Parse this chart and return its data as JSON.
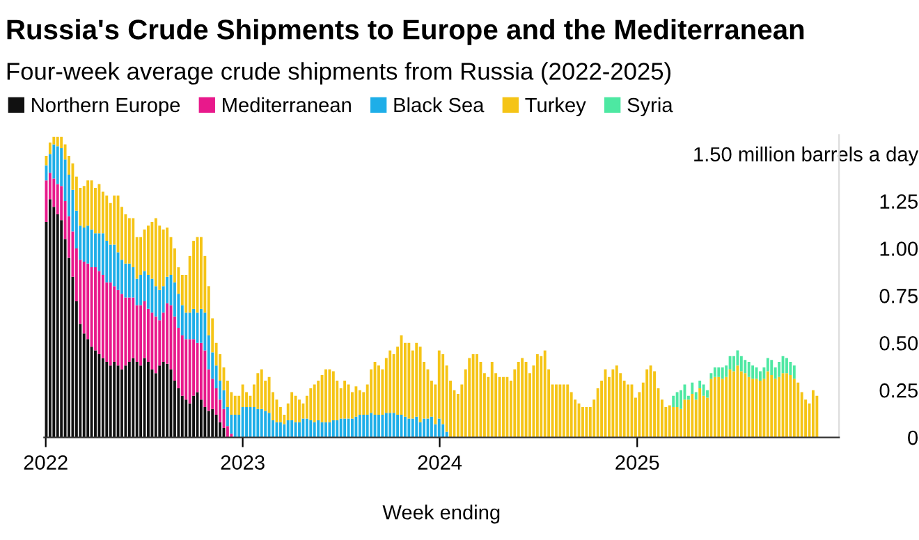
{
  "chart_data": {
    "type": "bar",
    "stacked": true,
    "title": "Russia's Crude Shipments to Europe and the Mediterranean",
    "subtitle": "Four-week average crude shipments from Russia (2022-2025)",
    "xlabel": "Week ending",
    "x": [
      "2022-01-02",
      "2022-01-09",
      "2022-01-16",
      "2022-01-23",
      "2022-01-30",
      "2022-02-06",
      "2022-02-13",
      "2022-02-20",
      "2022-02-27",
      "2022-03-06",
      "2022-03-13",
      "2022-03-20",
      "2022-03-27",
      "2022-04-03",
      "2022-04-10",
      "2022-04-17",
      "2022-04-24",
      "2022-05-01",
      "2022-05-08",
      "2022-05-15",
      "2022-05-22",
      "2022-05-29",
      "2022-06-05",
      "2022-06-12",
      "2022-06-19",
      "2022-06-26",
      "2022-07-03",
      "2022-07-10",
      "2022-07-17",
      "2022-07-24",
      "2022-07-31",
      "2022-08-07",
      "2022-08-14",
      "2022-08-21",
      "2022-08-28",
      "2022-09-04",
      "2022-09-11",
      "2022-09-18",
      "2022-09-25",
      "2022-10-02",
      "2022-10-09",
      "2022-10-16",
      "2022-10-23",
      "2022-10-30",
      "2022-11-06",
      "2022-11-13",
      "2022-11-20",
      "2022-11-27",
      "2022-12-04",
      "2022-12-11",
      "2022-12-18",
      "2022-12-25",
      "2023-01-01",
      "2023-01-08",
      "2023-01-15",
      "2023-01-22",
      "2023-01-29",
      "2023-02-05",
      "2023-02-12",
      "2023-02-19",
      "2023-02-26",
      "2023-03-05",
      "2023-03-12",
      "2023-03-19",
      "2023-03-26",
      "2023-04-02",
      "2023-04-09",
      "2023-04-16",
      "2023-04-23",
      "2023-04-30",
      "2023-05-07",
      "2023-05-14",
      "2023-05-21",
      "2023-05-28",
      "2023-06-04",
      "2023-06-11",
      "2023-06-18",
      "2023-06-25",
      "2023-07-02",
      "2023-07-09",
      "2023-07-16",
      "2023-07-23",
      "2023-07-30",
      "2023-08-06",
      "2023-08-13",
      "2023-08-20",
      "2023-08-27",
      "2023-09-03",
      "2023-09-10",
      "2023-09-17",
      "2023-09-24",
      "2023-10-01",
      "2023-10-08",
      "2023-10-15",
      "2023-10-22",
      "2023-10-29",
      "2023-11-05",
      "2023-11-12",
      "2023-11-19",
      "2023-11-26",
      "2023-12-03",
      "2023-12-10",
      "2023-12-17",
      "2023-12-24",
      "2023-12-31",
      "2024-01-07",
      "2024-01-14",
      "2024-01-21",
      "2024-01-28",
      "2024-02-04",
      "2024-02-11",
      "2024-02-18",
      "2024-02-25",
      "2024-03-03",
      "2024-03-10",
      "2024-03-17",
      "2024-03-24",
      "2024-03-31",
      "2024-04-07",
      "2024-04-14",
      "2024-04-21",
      "2024-04-28",
      "2024-05-05",
      "2024-05-12",
      "2024-05-19",
      "2024-05-26",
      "2024-06-02",
      "2024-06-09",
      "2024-06-16",
      "2024-06-23",
      "2024-06-30",
      "2024-07-07",
      "2024-07-14",
      "2024-07-21",
      "2024-07-28",
      "2024-08-04",
      "2024-08-11",
      "2024-08-18",
      "2024-08-25",
      "2024-09-01",
      "2024-09-08",
      "2024-09-15",
      "2024-09-22",
      "2024-09-29",
      "2024-10-06",
      "2024-10-13",
      "2024-10-20",
      "2024-10-27",
      "2024-11-03",
      "2024-11-10",
      "2024-11-17",
      "2024-11-24",
      "2024-12-01",
      "2024-12-08",
      "2024-12-15",
      "2024-12-22",
      "2024-12-29",
      "2025-01-05",
      "2025-01-12",
      "2025-01-19",
      "2025-01-26",
      "2025-02-02",
      "2025-02-09",
      "2025-02-16",
      "2025-02-23",
      "2025-03-02",
      "2025-03-09",
      "2025-03-16",
      "2025-03-23",
      "2025-03-30",
      "2025-04-06",
      "2025-04-13",
      "2025-04-20",
      "2025-04-27",
      "2025-05-04",
      "2025-05-11",
      "2025-05-18",
      "2025-05-25",
      "2025-06-01",
      "2025-06-08",
      "2025-06-15",
      "2025-06-22",
      "2025-06-29",
      "2025-07-06",
      "2025-07-13",
      "2025-07-20",
      "2025-07-27",
      "2025-08-03",
      "2025-08-10",
      "2025-08-17",
      "2025-08-24",
      "2025-08-31",
      "2025-09-07",
      "2025-09-14",
      "2025-09-21",
      "2025-09-28",
      "2025-10-05",
      "2025-10-12",
      "2025-10-19",
      "2025-10-26",
      "2025-11-02",
      "2025-11-09",
      "2025-11-16",
      "2025-11-23",
      "2025-11-30"
    ],
    "series": [
      {
        "name": "Northern Europe",
        "color": "#111111",
        "values": [
          1.14,
          1.26,
          1.22,
          1.18,
          1.15,
          1.05,
          0.95,
          0.85,
          0.72,
          0.6,
          0.55,
          0.52,
          0.48,
          0.46,
          0.44,
          0.42,
          0.4,
          0.38,
          0.4,
          0.38,
          0.36,
          0.38,
          0.4,
          0.42,
          0.4,
          0.38,
          0.42,
          0.4,
          0.36,
          0.34,
          0.38,
          0.4,
          0.39,
          0.36,
          0.3,
          0.26,
          0.22,
          0.2,
          0.18,
          0.22,
          0.24,
          0.2,
          0.16,
          0.14,
          0.15,
          0.12,
          0.08,
          0.05,
          0,
          0,
          0,
          0,
          0,
          0,
          0,
          0,
          0,
          0,
          0,
          0,
          0,
          0,
          0,
          0,
          0,
          0,
          0,
          0,
          0,
          0,
          0,
          0,
          0,
          0,
          0,
          0,
          0,
          0,
          0,
          0,
          0,
          0,
          0,
          0,
          0,
          0,
          0,
          0,
          0,
          0,
          0,
          0,
          0,
          0,
          0,
          0,
          0,
          0,
          0,
          0,
          0,
          0,
          0,
          0,
          0,
          0,
          0,
          0,
          0,
          0,
          0,
          0,
          0,
          0,
          0,
          0,
          0,
          0,
          0,
          0,
          0,
          0,
          0,
          0,
          0,
          0,
          0,
          0,
          0,
          0,
          0,
          0,
          0,
          0,
          0,
          0,
          0,
          0,
          0,
          0,
          0,
          0,
          0,
          0,
          0,
          0,
          0,
          0,
          0,
          0,
          0,
          0,
          0,
          0,
          0,
          0,
          0,
          0,
          0,
          0,
          0,
          0,
          0,
          0,
          0,
          0,
          0,
          0,
          0,
          0,
          0,
          0,
          0,
          0,
          0,
          0,
          0,
          0,
          0,
          0,
          0,
          0,
          0,
          0,
          0,
          0,
          0,
          0,
          0,
          0,
          0,
          0,
          0,
          0,
          0,
          0,
          0,
          0,
          0,
          0,
          0,
          0,
          0,
          0,
          0
        ]
      },
      {
        "name": "Mediterranean",
        "color": "#e8198b",
        "values": [
          0.22,
          0.14,
          0.15,
          0.16,
          0.18,
          0.2,
          0.22,
          0.24,
          0.28,
          0.34,
          0.38,
          0.4,
          0.42,
          0.44,
          0.44,
          0.44,
          0.42,
          0.44,
          0.4,
          0.4,
          0.4,
          0.36,
          0.34,
          0.32,
          0.3,
          0.32,
          0.3,
          0.28,
          0.3,
          0.3,
          0.24,
          0.26,
          0.32,
          0.34,
          0.34,
          0.32,
          0.32,
          0.32,
          0.34,
          0.3,
          0.26,
          0.3,
          0.3,
          0.22,
          0.16,
          0.14,
          0.12,
          0.1,
          0.06,
          0.02,
          0,
          0,
          0,
          0,
          0,
          0,
          0,
          0,
          0,
          0,
          0,
          0,
          0,
          0,
          0,
          0,
          0,
          0,
          0,
          0,
          0,
          0,
          0,
          0,
          0,
          0,
          0,
          0,
          0,
          0,
          0,
          0,
          0,
          0,
          0,
          0,
          0,
          0,
          0,
          0,
          0,
          0,
          0,
          0,
          0,
          0,
          0,
          0,
          0,
          0,
          0,
          0,
          0,
          0,
          0,
          0,
          0,
          0,
          0,
          0,
          0,
          0,
          0,
          0,
          0,
          0,
          0,
          0,
          0,
          0,
          0,
          0,
          0,
          0,
          0,
          0,
          0,
          0,
          0,
          0,
          0,
          0,
          0,
          0,
          0,
          0,
          0,
          0,
          0,
          0,
          0,
          0,
          0,
          0,
          0,
          0,
          0,
          0,
          0,
          0,
          0,
          0,
          0,
          0,
          0,
          0,
          0,
          0,
          0,
          0,
          0,
          0,
          0,
          0,
          0,
          0,
          0,
          0,
          0,
          0,
          0,
          0,
          0,
          0,
          0,
          0,
          0,
          0,
          0,
          0,
          0,
          0,
          0,
          0,
          0,
          0,
          0,
          0,
          0,
          0,
          0,
          0,
          0,
          0,
          0,
          0,
          0,
          0,
          0,
          0,
          0,
          0,
          0,
          0,
          0
        ]
      },
      {
        "name": "Black Sea",
        "color": "#1eaee8",
        "values": [
          0.08,
          0.1,
          0.18,
          0.2,
          0.2,
          0.22,
          0.22,
          0.22,
          0.2,
          0.18,
          0.18,
          0.2,
          0.2,
          0.18,
          0.2,
          0.22,
          0.22,
          0.2,
          0.22,
          0.2,
          0.18,
          0.18,
          0.18,
          0.16,
          0.14,
          0.16,
          0.16,
          0.18,
          0.18,
          0.16,
          0.16,
          0.14,
          0.14,
          0.16,
          0.18,
          0.18,
          0.16,
          0.14,
          0.14,
          0.16,
          0.16,
          0.18,
          0.2,
          0.18,
          0.14,
          0.12,
          0.1,
          0.1,
          0.1,
          0.1,
          0.12,
          0.12,
          0.16,
          0.16,
          0.16,
          0.16,
          0.15,
          0.15,
          0.14,
          0.13,
          0.09,
          0.08,
          0.08,
          0.07,
          0.09,
          0.09,
          0.08,
          0.08,
          0.1,
          0.1,
          0.09,
          0.08,
          0.09,
          0.08,
          0.08,
          0.08,
          0.09,
          0.09,
          0.1,
          0.1,
          0.1,
          0.1,
          0.11,
          0.12,
          0.12,
          0.12,
          0.13,
          0.12,
          0.12,
          0.12,
          0.13,
          0.13,
          0.13,
          0.12,
          0.12,
          0.11,
          0.1,
          0.1,
          0.11,
          0.08,
          0.1,
          0.1,
          0.11,
          0.07,
          0.1,
          0.07,
          0.03,
          0,
          0,
          0,
          0,
          0,
          0,
          0,
          0,
          0,
          0,
          0,
          0,
          0,
          0,
          0,
          0,
          0,
          0,
          0,
          0,
          0,
          0,
          0,
          0,
          0,
          0,
          0,
          0,
          0,
          0,
          0,
          0,
          0,
          0,
          0,
          0,
          0,
          0,
          0,
          0,
          0,
          0,
          0,
          0,
          0,
          0,
          0,
          0,
          0,
          0,
          0,
          0,
          0,
          0,
          0,
          0,
          0,
          0,
          0,
          0,
          0,
          0,
          0,
          0,
          0,
          0,
          0,
          0,
          0,
          0,
          0,
          0,
          0,
          0,
          0,
          0,
          0,
          0,
          0,
          0,
          0,
          0,
          0,
          0,
          0,
          0,
          0,
          0,
          0,
          0,
          0,
          0,
          0,
          0,
          0,
          0,
          0,
          0
        ]
      },
      {
        "name": "Turkey",
        "color": "#f5c416",
        "values": [
          0.05,
          0.06,
          0.04,
          0.05,
          0.06,
          0.08,
          0.1,
          0.14,
          0.18,
          0.2,
          0.22,
          0.24,
          0.26,
          0.24,
          0.26,
          0.22,
          0.24,
          0.22,
          0.26,
          0.3,
          0.28,
          0.26,
          0.24,
          0.26,
          0.22,
          0.2,
          0.22,
          0.26,
          0.3,
          0.36,
          0.34,
          0.3,
          0.26,
          0.2,
          0.18,
          0.14,
          0.16,
          0.2,
          0.3,
          0.36,
          0.4,
          0.38,
          0.3,
          0.26,
          0.18,
          0.12,
          0.14,
          0.12,
          0.14,
          0.12,
          0.1,
          0.1,
          0.12,
          0.08,
          0.06,
          0.12,
          0.19,
          0.21,
          0.16,
          0.19,
          0.15,
          0.12,
          0.08,
          0.05,
          0.09,
          0.15,
          0.14,
          0.12,
          0.08,
          0.12,
          0.17,
          0.2,
          0.21,
          0.25,
          0.28,
          0.28,
          0.26,
          0.21,
          0.16,
          0.2,
          0.18,
          0.14,
          0.16,
          0.13,
          0.12,
          0.16,
          0.23,
          0.28,
          0.26,
          0.24,
          0.29,
          0.33,
          0.31,
          0.36,
          0.42,
          0.39,
          0.4,
          0.36,
          0.39,
          0.4,
          0.3,
          0.26,
          0.19,
          0.21,
          0.36,
          0.37,
          0.35,
          0.3,
          0.25,
          0.23,
          0.28,
          0.36,
          0.42,
          0.44,
          0.44,
          0.4,
          0.34,
          0.32,
          0.4,
          0.34,
          0.32,
          0.32,
          0.32,
          0.3,
          0.36,
          0.4,
          0.42,
          0.4,
          0.34,
          0.38,
          0.44,
          0.43,
          0.46,
          0.36,
          0.28,
          0.28,
          0.28,
          0.28,
          0.28,
          0.24,
          0.2,
          0.18,
          0.16,
          0.16,
          0.16,
          0.2,
          0.26,
          0.3,
          0.36,
          0.32,
          0.36,
          0.38,
          0.34,
          0.3,
          0.28,
          0.28,
          0.21,
          0.24,
          0.29,
          0.36,
          0.38,
          0.35,
          0.26,
          0.2,
          0.16,
          0.17,
          0.16,
          0.16,
          0.15,
          0.2,
          0.2,
          0.23,
          0.2,
          0.26,
          0.22,
          0.21,
          0.31,
          0.32,
          0.32,
          0.31,
          0.32,
          0.36,
          0.35,
          0.38,
          0.35,
          0.34,
          0.32,
          0.31,
          0.31,
          0.3,
          0.31,
          0.35,
          0.33,
          0.31,
          0.32,
          0.34,
          0.34,
          0.33,
          0.31,
          0.29,
          0.24,
          0.2,
          0.18,
          0.25,
          0.22
        ]
      },
      {
        "name": "Syria",
        "color": "#4de8a2",
        "values": [
          0,
          0,
          0,
          0,
          0,
          0,
          0,
          0,
          0,
          0,
          0,
          0,
          0,
          0,
          0,
          0,
          0,
          0,
          0,
          0,
          0,
          0,
          0,
          0,
          0,
          0,
          0,
          0,
          0,
          0,
          0,
          0,
          0,
          0,
          0,
          0,
          0,
          0,
          0,
          0,
          0,
          0,
          0,
          0,
          0,
          0,
          0,
          0,
          0,
          0,
          0,
          0,
          0,
          0,
          0,
          0,
          0,
          0,
          0,
          0,
          0,
          0,
          0,
          0,
          0,
          0,
          0,
          0,
          0,
          0,
          0,
          0,
          0,
          0,
          0,
          0,
          0,
          0,
          0,
          0,
          0,
          0,
          0,
          0,
          0,
          0,
          0,
          0,
          0,
          0,
          0,
          0,
          0,
          0,
          0,
          0,
          0,
          0,
          0,
          0,
          0,
          0,
          0,
          0,
          0,
          0,
          0,
          0,
          0,
          0,
          0,
          0,
          0,
          0,
          0,
          0,
          0,
          0,
          0,
          0,
          0,
          0,
          0,
          0,
          0,
          0,
          0,
          0,
          0,
          0,
          0,
          0,
          0,
          0,
          0,
          0,
          0,
          0,
          0,
          0,
          0,
          0,
          0,
          0,
          0,
          0,
          0,
          0,
          0,
          0,
          0,
          0,
          0,
          0,
          0,
          0,
          0,
          0,
          0,
          0,
          0,
          0,
          0,
          0,
          0,
          0,
          0.06,
          0.08,
          0.1,
          0.08,
          0.02,
          0.06,
          0.04,
          0.04,
          0.06,
          0.04,
          0.03,
          0.05,
          0.05,
          0.06,
          0.06,
          0.07,
          0.08,
          0.08,
          0.08,
          0.07,
          0.08,
          0.07,
          0.06,
          0.05,
          0.06,
          0.07,
          0.08,
          0.06,
          0.08,
          0.09,
          0.08,
          0.07,
          0.07,
          0,
          0,
          0,
          0,
          0,
          0
        ]
      }
    ],
    "xlim": [
      "2021-12-29",
      "2026-01-10"
    ],
    "xticks": [
      "2022",
      "2023",
      "2024",
      "2025"
    ],
    "ylim": [
      0,
      1.6
    ],
    "yticks": [
      0,
      0.25,
      {
        "value": 0.5,
        "label": "0.50"
      },
      0.75,
      {
        "value": 1.0,
        "label": "1.00"
      },
      1.25,
      {
        "value": 1.5,
        "label": "1.50 million barrels a day"
      }
    ],
    "grid": false,
    "legend": "top left"
  }
}
